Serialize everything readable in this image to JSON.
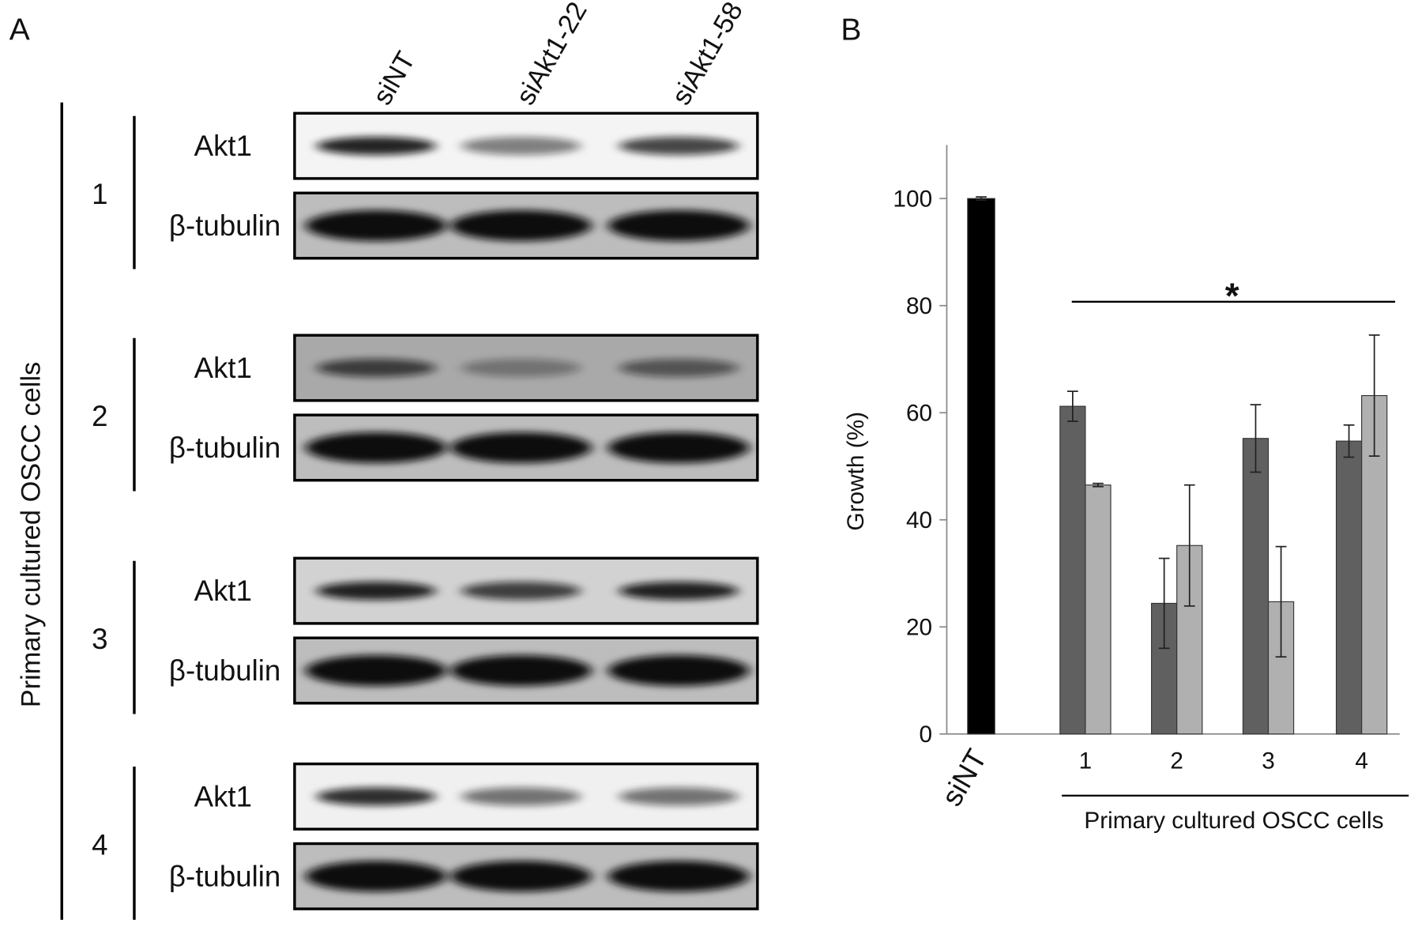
{
  "panel_a": {
    "label": "A",
    "lanes": [
      "siNT",
      "siAkt1-22",
      "siAkt1-58"
    ],
    "side_label": "Primary cultured OSCC cells",
    "groups": [
      {
        "label": "1",
        "rows": [
          "Akt1",
          "β-tubulin"
        ]
      },
      {
        "label": "2",
        "rows": [
          "Akt1",
          "β-tubulin"
        ]
      },
      {
        "label": "3",
        "rows": [
          "Akt1",
          "β-tubulin"
        ]
      },
      {
        "label": "4",
        "rows": [
          "Akt1",
          "β-tubulin"
        ]
      }
    ]
  },
  "chart_data": {
    "type": "bar",
    "panel_label": "B",
    "ylabel": "Growth (%)",
    "categories": [
      "siNT",
      "1",
      "2",
      "3",
      "4"
    ],
    "group_label": "Primary cultured OSCC cells",
    "annotation": "*",
    "series": [
      {
        "color": "#000000",
        "values": [
          100,
          null,
          null,
          null,
          null
        ],
        "errors": [
          0.3,
          null,
          null,
          null,
          null
        ]
      },
      {
        "color": "#606060",
        "values": [
          null,
          61.2,
          24.4,
          55.2,
          54.7
        ],
        "errors": [
          null,
          2.8,
          8.4,
          6.3,
          3.0
        ]
      },
      {
        "color": "#b0b0b0",
        "values": [
          null,
          46.5,
          35.2,
          24.7,
          63.2
        ],
        "errors": [
          null,
          0.3,
          11.3,
          10.3,
          11.3
        ]
      }
    ],
    "ylim": [
      0,
      110
    ],
    "yticks": [
      0,
      20,
      40,
      60,
      80,
      100
    ],
    "grid": false
  }
}
